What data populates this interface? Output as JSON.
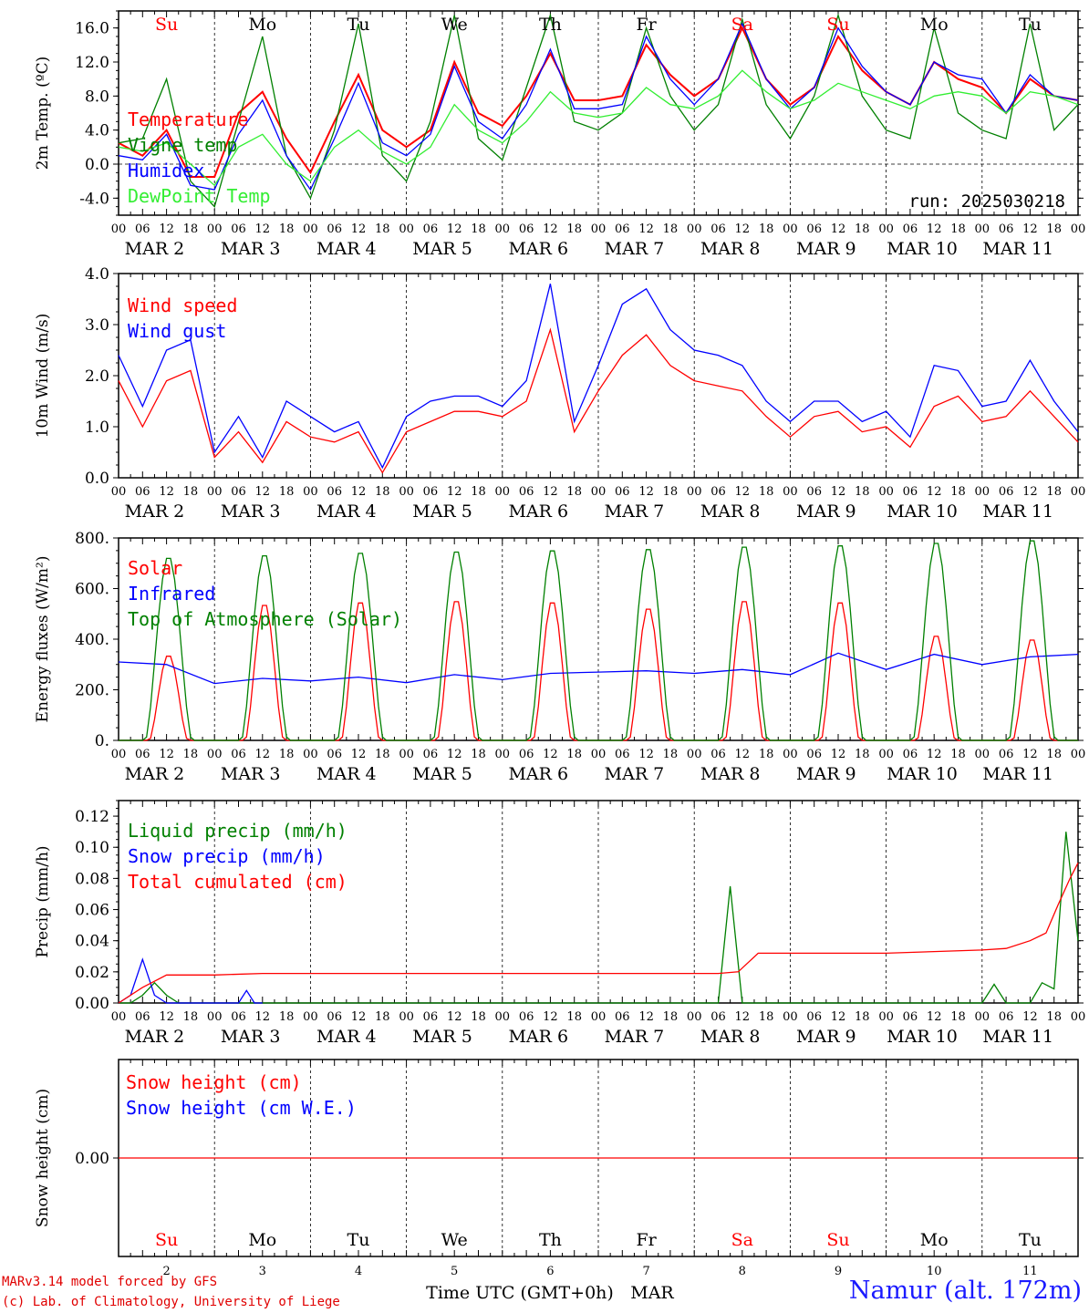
{
  "colors": {
    "red": "#ff0000",
    "green": "#008000",
    "blue": "#0000ff",
    "lightgreen": "#33ee33",
    "weekend": "#ff0000",
    "weekday": "#000000"
  },
  "hour_ticks": [
    "00",
    "06",
    "12",
    "18"
  ],
  "end_tick": "00",
  "day_labels": [
    "MAR  2",
    "MAR  3",
    "MAR  4",
    "MAR  5",
    "MAR  6",
    "MAR  7",
    "MAR  8",
    "MAR  9",
    "MAR 10",
    "MAR 11"
  ],
  "weekdays": [
    {
      "d": "Su",
      "weekend": true
    },
    {
      "d": "Mo",
      "weekend": false
    },
    {
      "d": "Tu",
      "weekend": false
    },
    {
      "d": "We",
      "weekend": false
    },
    {
      "d": "Th",
      "weekend": false
    },
    {
      "d": "Fr",
      "weekend": false
    },
    {
      "d": "Sa",
      "weekend": true
    },
    {
      "d": "Su",
      "weekend": true
    },
    {
      "d": "Mo",
      "weekend": false
    },
    {
      "d": "Tu",
      "weekend": false
    }
  ],
  "day_numbers": [
    "2",
    "3",
    "4",
    "5",
    "6",
    "7",
    "8",
    "9",
    "10",
    "11"
  ],
  "run_label": "run: 2025030218",
  "xlabel": "Time UTC (GMT+0h)",
  "xlabel_month": "MAR",
  "footer": {
    "model": "MARv3.14 model forced by GFS",
    "credit": "(c) Lab. of Climatology, University of Liege",
    "station": "Namur (alt. 172m)"
  },
  "chart_data": [
    {
      "type": "line",
      "ylabel": "2m Temp. (ºC)",
      "yticks": [
        "16.0",
        "12.0",
        "8.0",
        "4.0",
        "0.0",
        "-4.0"
      ],
      "ylim": [
        -6,
        18
      ],
      "zero_line": true,
      "series": [
        {
          "name": "Temperature",
          "color": "red",
          "x": [
            0,
            6,
            12,
            18,
            24,
            30,
            36,
            42,
            48,
            54,
            60,
            66,
            72,
            78,
            84,
            90,
            96,
            102,
            108,
            114,
            120,
            126,
            132,
            138,
            144,
            150,
            156,
            162,
            168,
            174,
            180,
            186,
            192,
            198,
            204,
            210,
            216,
            222,
            228,
            234,
            240
          ],
          "y": [
            2.5,
            1.0,
            4.0,
            -1.5,
            -1.5,
            6.0,
            8.5,
            3.0,
            -1.0,
            5.0,
            10.5,
            4.0,
            2.0,
            4.0,
            12.0,
            6.0,
            4.5,
            8.0,
            13.0,
            7.5,
            7.5,
            8.0,
            14.0,
            10.5,
            8.0,
            10.0,
            16.0,
            10.0,
            7.0,
            9.0,
            15.0,
            11.0,
            8.5,
            7.0,
            12.0,
            10.0,
            9.0,
            6.0,
            10.0,
            8.0,
            7.5
          ]
        },
        {
          "name": "Vigne temp",
          "color": "green",
          "x": [
            0,
            6,
            12,
            18,
            24,
            30,
            36,
            42,
            48,
            54,
            60,
            66,
            72,
            78,
            84,
            90,
            96,
            102,
            108,
            114,
            120,
            126,
            132,
            138,
            144,
            150,
            156,
            162,
            168,
            174,
            180,
            186,
            192,
            198,
            204,
            210,
            216,
            222,
            228,
            234,
            240
          ],
          "y": [
            2.5,
            3.0,
            10.0,
            -2.0,
            -5.0,
            5.0,
            15.0,
            1.0,
            -4.0,
            4.0,
            16.5,
            1.0,
            -2.0,
            5.0,
            17.5,
            3.0,
            0.5,
            9.0,
            17.5,
            5.0,
            4.0,
            6.0,
            16.0,
            8.0,
            4.0,
            7.0,
            17.0,
            7.0,
            3.0,
            8.0,
            17.5,
            8.0,
            4.0,
            3.0,
            16.0,
            6.0,
            4.0,
            3.0,
            16.5,
            4.0,
            7.0
          ]
        },
        {
          "name": "Humidex",
          "color": "blue",
          "x": [
            0,
            6,
            12,
            18,
            24,
            30,
            36,
            42,
            48,
            54,
            60,
            66,
            72,
            78,
            84,
            90,
            96,
            102,
            108,
            114,
            120,
            126,
            132,
            138,
            144,
            150,
            156,
            162,
            168,
            174,
            180,
            186,
            192,
            198,
            204,
            210,
            216,
            222,
            228,
            234,
            240
          ],
          "y": [
            1.0,
            0.5,
            3.5,
            -2.5,
            -3.0,
            3.5,
            7.5,
            1.0,
            -3.0,
            3.0,
            9.5,
            2.5,
            1.0,
            3.5,
            11.5,
            5.0,
            3.0,
            7.0,
            13.5,
            6.5,
            6.5,
            7.0,
            15.0,
            10.0,
            7.0,
            10.0,
            16.5,
            10.0,
            6.5,
            9.0,
            16.0,
            11.5,
            8.5,
            7.0,
            12.0,
            10.5,
            10.0,
            6.0,
            10.5,
            8.0,
            7.5
          ]
        },
        {
          "name": "DewPoint Temp",
          "color": "lightgreen",
          "x": [
            0,
            6,
            12,
            18,
            24,
            30,
            36,
            42,
            48,
            54,
            60,
            66,
            72,
            78,
            84,
            90,
            96,
            102,
            108,
            114,
            120,
            126,
            132,
            138,
            144,
            150,
            156,
            162,
            168,
            174,
            180,
            186,
            192,
            198,
            204,
            210,
            216,
            222,
            228,
            234,
            240
          ],
          "y": [
            2.0,
            1.5,
            2.5,
            0.0,
            -2.5,
            2.0,
            3.5,
            0.0,
            -2.0,
            2.0,
            4.0,
            1.5,
            0.0,
            2.0,
            7.0,
            4.0,
            2.5,
            5.0,
            8.5,
            6.0,
            5.5,
            6.0,
            9.0,
            7.0,
            6.5,
            8.0,
            11.0,
            8.5,
            6.5,
            7.5,
            9.5,
            8.5,
            7.5,
            6.5,
            8.0,
            8.5,
            8.0,
            6.0,
            8.5,
            8.0,
            7.0
          ]
        }
      ]
    },
    {
      "type": "line",
      "ylabel": "10m Wind (m/s)",
      "yticks": [
        "4.0",
        "3.0",
        "2.0",
        "1.0",
        "0.0"
      ],
      "ylim": [
        0,
        4
      ],
      "series": [
        {
          "name": "Wind speed",
          "color": "red",
          "x": [
            0,
            6,
            12,
            18,
            24,
            30,
            36,
            42,
            48,
            54,
            60,
            66,
            72,
            78,
            84,
            90,
            96,
            102,
            108,
            114,
            120,
            126,
            132,
            138,
            144,
            150,
            156,
            162,
            168,
            174,
            180,
            186,
            192,
            198,
            204,
            210,
            216,
            222,
            228,
            234,
            240
          ],
          "y": [
            1.9,
            1.0,
            1.9,
            2.1,
            0.4,
            0.9,
            0.3,
            1.1,
            0.8,
            0.7,
            0.9,
            0.1,
            0.9,
            1.1,
            1.3,
            1.3,
            1.2,
            1.5,
            2.9,
            0.9,
            1.7,
            2.4,
            2.8,
            2.2,
            1.9,
            1.8,
            1.7,
            1.2,
            0.8,
            1.2,
            1.3,
            0.9,
            1.0,
            0.6,
            1.4,
            1.6,
            1.1,
            1.2,
            1.7,
            1.2,
            0.7
          ]
        },
        {
          "name": "Wind gust",
          "color": "blue",
          "x": [
            0,
            6,
            12,
            18,
            24,
            30,
            36,
            42,
            48,
            54,
            60,
            66,
            72,
            78,
            84,
            90,
            96,
            102,
            108,
            114,
            120,
            126,
            132,
            138,
            144,
            150,
            156,
            162,
            168,
            174,
            180,
            186,
            192,
            198,
            204,
            210,
            216,
            222,
            228,
            234,
            240
          ],
          "y": [
            2.4,
            1.4,
            2.5,
            2.7,
            0.5,
            1.2,
            0.4,
            1.5,
            1.2,
            0.9,
            1.1,
            0.2,
            1.2,
            1.5,
            1.6,
            1.6,
            1.4,
            1.9,
            3.8,
            1.1,
            2.2,
            3.4,
            3.7,
            2.9,
            2.5,
            2.4,
            2.2,
            1.5,
            1.1,
            1.5,
            1.5,
            1.1,
            1.3,
            0.8,
            2.2,
            2.1,
            1.4,
            1.5,
            2.3,
            1.5,
            0.9
          ]
        }
      ]
    },
    {
      "type": "line",
      "ylabel": "Energy fluxes (W/m²)",
      "yticks": [
        "800.",
        "600.",
        "400.",
        "200.",
        "0."
      ],
      "ylim": [
        0,
        800
      ],
      "series": [
        {
          "name": "Solar",
          "color": "red",
          "peaks": [
            340,
            545,
            555,
            560,
            555,
            530,
            560,
            555,
            420,
            405
          ]
        },
        {
          "name": "Infrared",
          "color": "blue",
          "x": [
            0,
            12,
            24,
            36,
            48,
            60,
            72,
            84,
            96,
            108,
            120,
            132,
            144,
            156,
            168,
            180,
            192,
            204,
            216,
            228,
            240
          ],
          "y": [
            310,
            300,
            225,
            245,
            235,
            250,
            228,
            260,
            240,
            265,
            270,
            275,
            265,
            280,
            260,
            345,
            280,
            340,
            300,
            330,
            340
          ]
        },
        {
          "name": "Top of Atmosphere (Solar)",
          "color": "green",
          "peaks": [
            730,
            740,
            750,
            755,
            760,
            765,
            775,
            780,
            790,
            800
          ]
        }
      ]
    },
    {
      "type": "line",
      "ylabel": "Precip (mm/h)",
      "yticks": [
        "0.12",
        "0.10",
        "0.08",
        "0.06",
        "0.04",
        "0.02",
        "0.00"
      ],
      "ylim": [
        0,
        0.13
      ],
      "series": [
        {
          "name": "Liquid precip (mm/h)",
          "color": "green",
          "x": [
            0,
            3,
            6,
            9,
            12,
            15,
            18,
            150,
            153,
            156,
            159,
            162,
            165,
            216,
            219,
            222,
            228,
            231,
            234,
            237,
            240
          ],
          "y": [
            0.0,
            0.0,
            0.005,
            0.013,
            0.005,
            0.0,
            0.0,
            0.0,
            0.075,
            0.0,
            0.0,
            0.0,
            0.0,
            0.0,
            0.012,
            0.0,
            0.0,
            0.013,
            0.009,
            0.11,
            0.04
          ]
        },
        {
          "name": "Snow precip (mm/h)",
          "color": "blue",
          "x": [
            0,
            3,
            6,
            9,
            12,
            15,
            24,
            30,
            32,
            34,
            36
          ],
          "y": [
            0.0,
            0.005,
            0.028,
            0.005,
            0.0,
            0.0,
            0.0,
            0.0,
            0.008,
            0.0,
            0.0
          ]
        },
        {
          "name": "Total cumulated (cm)",
          "color": "red",
          "x": [
            0,
            6,
            12,
            24,
            36,
            48,
            144,
            150,
            155,
            160,
            168,
            192,
            204,
            216,
            222,
            228,
            232,
            235,
            238,
            240
          ],
          "y": [
            0.0,
            0.01,
            0.018,
            0.018,
            0.019,
            0.019,
            0.019,
            0.019,
            0.02,
            0.032,
            0.032,
            0.032,
            0.033,
            0.034,
            0.035,
            0.04,
            0.045,
            0.063,
            0.08,
            0.09
          ]
        }
      ]
    },
    {
      "type": "line",
      "ylabel": "Snow height (cm)",
      "yticks": [
        "0.00"
      ],
      "ylim": [
        -1,
        1
      ],
      "series": [
        {
          "name": "Snow height (cm)",
          "color": "red",
          "x": [
            0,
            240
          ],
          "y": [
            0,
            0
          ]
        },
        {
          "name": "Snow height (cm W.E.)",
          "color": "blue",
          "x": [],
          "y": []
        }
      ]
    }
  ]
}
